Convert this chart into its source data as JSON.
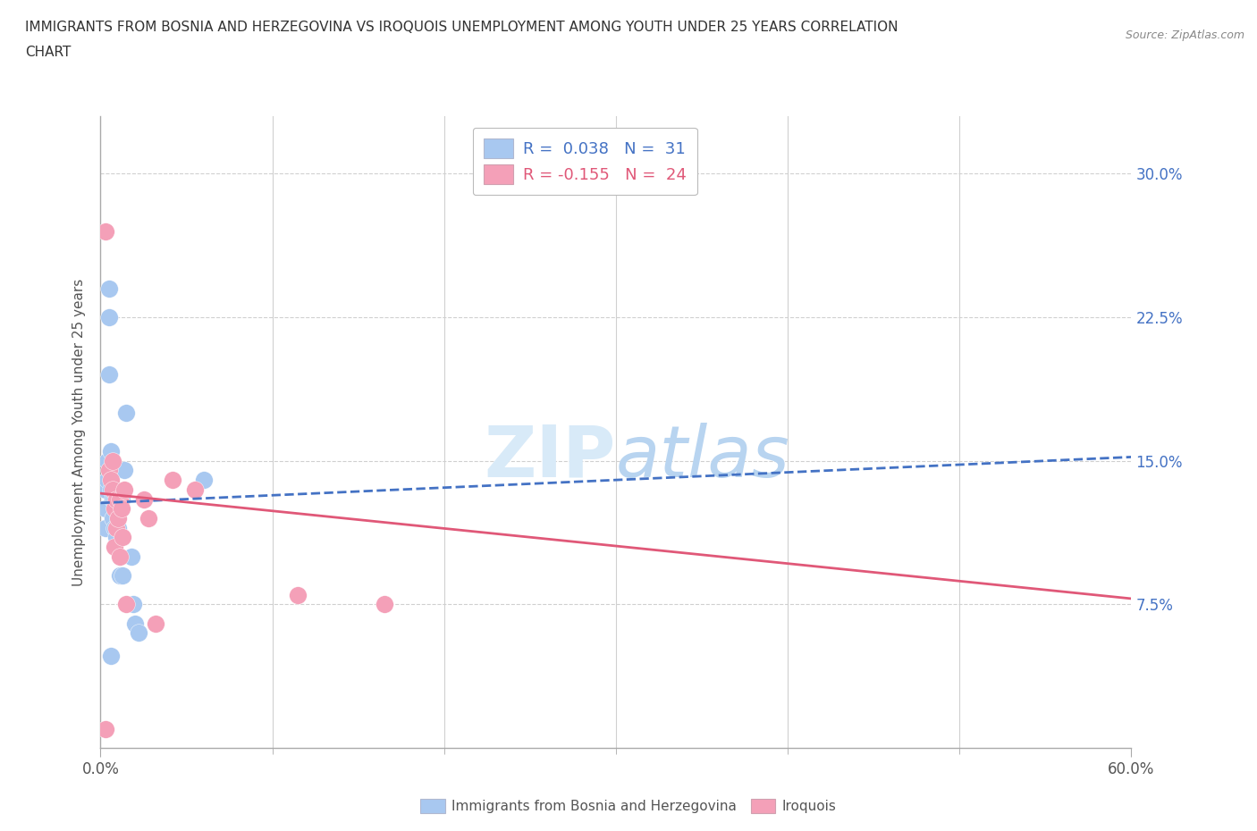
{
  "title_line1": "IMMIGRANTS FROM BOSNIA AND HERZEGOVINA VS IROQUOIS UNEMPLOYMENT AMONG YOUTH UNDER 25 YEARS CORRELATION",
  "title_line2": "CHART",
  "source_text": "Source: ZipAtlas.com",
  "ylabel": "Unemployment Among Youth under 25 years",
  "xlim": [
    0.0,
    0.6
  ],
  "ylim": [
    0.0,
    0.33
  ],
  "y_ticks": [
    0.075,
    0.15,
    0.225,
    0.3
  ],
  "y_tick_labels": [
    "7.5%",
    "15.0%",
    "22.5%",
    "30.0%"
  ],
  "R_bosnia": 0.038,
  "N_bosnia": 31,
  "R_iroquois": -0.155,
  "N_iroquois": 24,
  "legend_label_bosnia": "Immigrants from Bosnia and Herzegovina",
  "legend_label_iroquois": "Iroquois",
  "color_bosnia": "#A8C8F0",
  "color_iroquois": "#F4A0B8",
  "trendline_color_bosnia": "#4472C4",
  "trendline_color_iroquois": "#E05878",
  "ytick_color": "#4472C4",
  "grid_color": "#d0d0d0",
  "watermark_color": "#d8e8f8",
  "bosnia_x": [
    0.003,
    0.003,
    0.003,
    0.004,
    0.004,
    0.005,
    0.005,
    0.005,
    0.006,
    0.006,
    0.007,
    0.007,
    0.008,
    0.008,
    0.008,
    0.009,
    0.009,
    0.01,
    0.01,
    0.011,
    0.011,
    0.012,
    0.013,
    0.014,
    0.015,
    0.018,
    0.019,
    0.02,
    0.022,
    0.06,
    0.006
  ],
  "bosnia_y": [
    0.135,
    0.125,
    0.115,
    0.15,
    0.14,
    0.24,
    0.225,
    0.195,
    0.155,
    0.135,
    0.13,
    0.12,
    0.145,
    0.13,
    0.115,
    0.125,
    0.11,
    0.13,
    0.115,
    0.125,
    0.09,
    0.13,
    0.09,
    0.145,
    0.175,
    0.1,
    0.075,
    0.065,
    0.06,
    0.14,
    0.048
  ],
  "iroquois_x": [
    0.003,
    0.005,
    0.006,
    0.007,
    0.007,
    0.008,
    0.008,
    0.009,
    0.009,
    0.01,
    0.011,
    0.011,
    0.012,
    0.013,
    0.014,
    0.015,
    0.025,
    0.028,
    0.032,
    0.042,
    0.055,
    0.115,
    0.165,
    0.003
  ],
  "iroquois_y": [
    0.27,
    0.145,
    0.14,
    0.15,
    0.135,
    0.125,
    0.105,
    0.13,
    0.115,
    0.12,
    0.13,
    0.1,
    0.125,
    0.11,
    0.135,
    0.075,
    0.13,
    0.12,
    0.065,
    0.14,
    0.135,
    0.08,
    0.075,
    0.01
  ],
  "trend_bosnia_x0": 0.0,
  "trend_bosnia_y0": 0.128,
  "trend_bosnia_x1": 0.6,
  "trend_bosnia_y1": 0.152,
  "trend_iroquois_x0": 0.0,
  "trend_iroquois_y0": 0.133,
  "trend_iroquois_x1": 0.6,
  "trend_iroquois_y1": 0.078
}
